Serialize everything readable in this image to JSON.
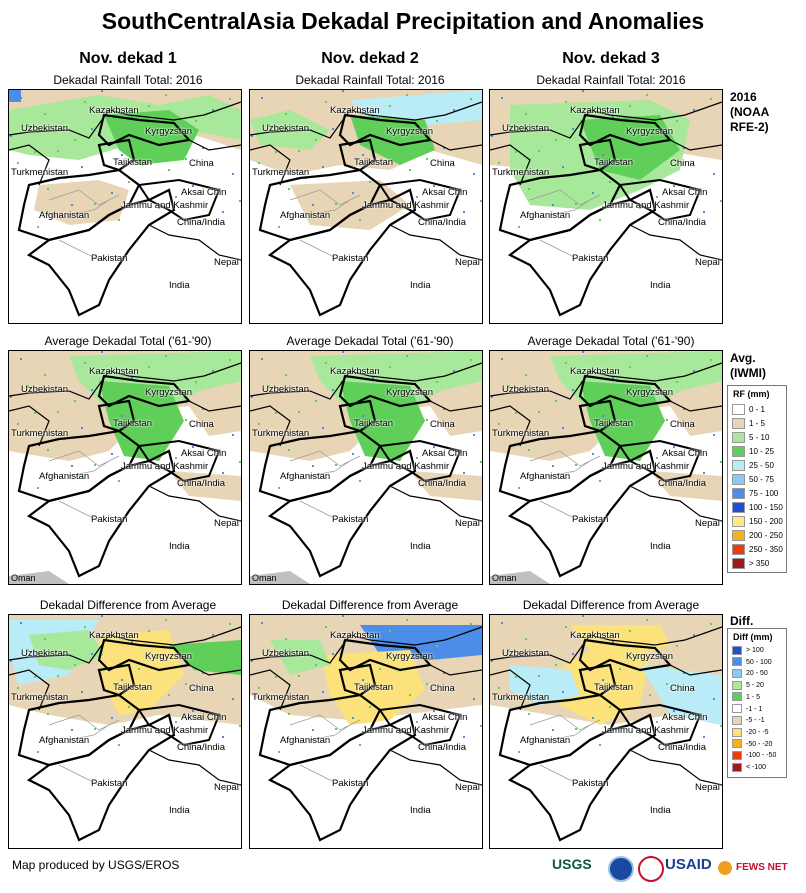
{
  "title": "SouthCentralAsia Dekadal Precipitation and Anomalies",
  "columns": [
    "Nov. dekad 1",
    "Nov. dekad 2",
    "Nov. dekad 3"
  ],
  "row_titles": {
    "total": "Dekadal Rainfall Total: 2016",
    "average": "Average Dekadal Total ('61-'90)",
    "diff": "Dekadal Difference from Average"
  },
  "side_labels": {
    "total": [
      "2016",
      "(NOAA",
      "RFE-2)"
    ],
    "average": [
      "Avg.",
      "(IWMI)"
    ],
    "diff": [
      "Diff."
    ]
  },
  "place_labels": {
    "kazakhstan": "Kazakhstan",
    "uzbekistan": "Uzbekistan",
    "kyrgyzstan": "Kyrgyzstan",
    "turkmenistan": "Turkmenistan",
    "tajikistan": "Tajikistan",
    "china": "China",
    "aksai_chin": "Aksai Chin",
    "jammu": "Jammu and Kashmir",
    "china_india": "China/India",
    "afghanistan": "Afghanistan",
    "pakistan": "Pakistan",
    "nepal": "Nepal",
    "india": "India",
    "oman": "Oman"
  },
  "rf_legend": {
    "title": "RF (mm)",
    "items": [
      {
        "label": "0 - 1",
        "color": "#ffffff"
      },
      {
        "label": "1 - 5",
        "color": "#e8d5b5"
      },
      {
        "label": "5 - 10",
        "color": "#a8e89a"
      },
      {
        "label": "10 - 25",
        "color": "#5fcf5a"
      },
      {
        "label": "25 - 50",
        "color": "#b9ecf7"
      },
      {
        "label": "50 - 75",
        "color": "#8bc8f2"
      },
      {
        "label": "75 - 100",
        "color": "#4b8de8"
      },
      {
        "label": "100 - 150",
        "color": "#1f4fd6"
      },
      {
        "label": "150 - 200",
        "color": "#fbe98a"
      },
      {
        "label": "200 - 250",
        "color": "#f5b21a"
      },
      {
        "label": "250 - 350",
        "color": "#ee3a0e"
      },
      {
        "label": "> 350",
        "color": "#9c1c1c"
      }
    ]
  },
  "diff_legend": {
    "title": "Diff (mm)",
    "items": [
      {
        "label": "> 100",
        "color": "#1f4fd6"
      },
      {
        "label": "50 - 100",
        "color": "#4b8de8"
      },
      {
        "label": "20 - 50",
        "color": "#8bc8f2"
      },
      {
        "label": "5 - 20",
        "color": "#a8e89a"
      },
      {
        "label": "1 - 5",
        "color": "#5fcf5a"
      },
      {
        "label": "-1 - 1",
        "color": "#ffffff"
      },
      {
        "label": "-5 - -1",
        "color": "#e8d5b5"
      },
      {
        "label": "-20 - -5",
        "color": "#fbe27a"
      },
      {
        "label": "-50 - -20",
        "color": "#f5b21a"
      },
      {
        "label": "-100 - -50",
        "color": "#ee3a0e"
      },
      {
        "label": "< -100",
        "color": "#9c1c1c"
      }
    ]
  },
  "footer": "Map produced by USGS/EROS",
  "logos": {
    "usgs": "USGS",
    "usaid": "USAID",
    "fews": "FEWS NET"
  },
  "colors": {
    "land_dry": "#e8d5b5",
    "green_light": "#a8e89a",
    "green": "#5fcf5a",
    "blue_light": "#b9ecf7",
    "blue": "#4b8de8",
    "yellow": "#fbe27a",
    "ocean": "#c0c0c0"
  }
}
